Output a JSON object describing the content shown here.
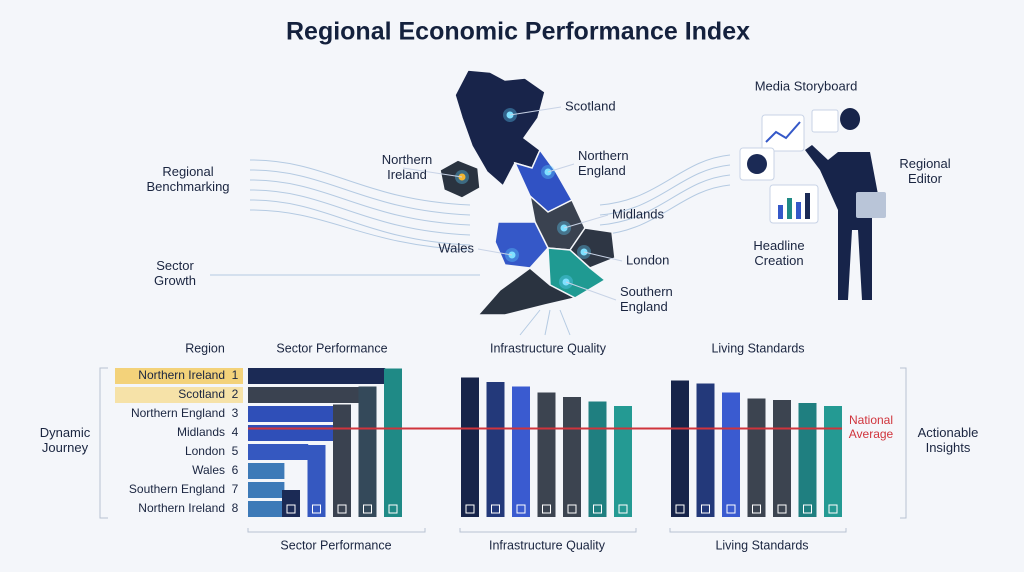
{
  "title": "Regional Economic Performance Index",
  "map": {
    "labels": [
      {
        "lines": [
          "Scotland"
        ]
      },
      {
        "lines": [
          "Northern",
          "Ireland"
        ]
      },
      {
        "lines": [
          "Northern",
          "England"
        ]
      },
      {
        "lines": [
          "Midlands"
        ]
      },
      {
        "lines": [
          "Wales"
        ]
      },
      {
        "lines": [
          "London"
        ]
      },
      {
        "lines": [
          "Southern",
          "England"
        ]
      }
    ]
  },
  "side_labels": [
    {
      "lines": [
        "Regional",
        "Benchmarking"
      ]
    },
    {
      "lines": [
        "Sector",
        "Growth"
      ]
    },
    {
      "lines": [
        "Dynamic",
        "Journey"
      ]
    },
    {
      "lines": [
        "Actionable",
        "Insights"
      ]
    }
  ],
  "media": {
    "title": "Media Storyboard",
    "labels": [
      {
        "lines": [
          "Regional",
          "Editor"
        ]
      },
      {
        "lines": [
          "Headline",
          "Creation"
        ]
      }
    ]
  },
  "ranking": {
    "header": "Region",
    "rows": [
      {
        "name": "Northern Ireland",
        "rank": 1
      },
      {
        "name": "Scotland",
        "rank": 2
      },
      {
        "name": "Northern England",
        "rank": 3
      },
      {
        "name": "Midlands",
        "rank": 4
      },
      {
        "name": "London",
        "rank": 5
      },
      {
        "name": "Wales",
        "rank": 6
      },
      {
        "name": "Southern England",
        "rank": 7
      },
      {
        "name": "Northern Ireland",
        "rank": 8
      }
    ]
  },
  "panels": [
    {
      "header": "Sector Performance",
      "footer": "Sector Performance",
      "bars": [
        {
          "value": 98,
          "color": "#1b2a55"
        },
        {
          "value": 79,
          "color": "#3a4250"
        },
        {
          "value": 61,
          "color": "#2f4fb8"
        },
        {
          "value": 61,
          "color": "#2f4fb8"
        },
        {
          "value": 43,
          "color": "#3558c0"
        },
        {
          "value": 26,
          "color": "#3d7ab8"
        },
        {
          "value": 26,
          "color": "#3d7ab8"
        },
        {
          "value": 26,
          "color": "#3d7ab8"
        }
      ],
      "columns": [
        {
          "value": 18,
          "color": "#1b2a55"
        },
        {
          "value": 48,
          "color": "#3558c0"
        },
        {
          "value": 75,
          "color": "#3a4250"
        },
        {
          "value": 87,
          "color": "#34495a"
        },
        {
          "value": 99,
          "color": "#1f8a86"
        }
      ]
    },
    {
      "header": "Infrastructure Quality",
      "footer": "Infrastructure Quality",
      "columns": [
        {
          "value": 93,
          "color": "#17244a"
        },
        {
          "value": 90,
          "color": "#23397a"
        },
        {
          "value": 87,
          "color": "#3a5bd0"
        },
        {
          "value": 83,
          "color": "#3c4450"
        },
        {
          "value": 80,
          "color": "#3c4450"
        },
        {
          "value": 77,
          "color": "#1f7f80"
        },
        {
          "value": 74,
          "color": "#249a93"
        }
      ]
    },
    {
      "header": "Living Standards",
      "footer": "Living Standards",
      "columns": [
        {
          "value": 91,
          "color": "#17244a"
        },
        {
          "value": 89,
          "color": "#23397a"
        },
        {
          "value": 83,
          "color": "#3a5bd0"
        },
        {
          "value": 79,
          "color": "#3c4450"
        },
        {
          "value": 78,
          "color": "#3c4450"
        },
        {
          "value": 76,
          "color": "#1f7f80"
        },
        {
          "value": 74,
          "color": "#249a93"
        }
      ]
    }
  ],
  "national_average": {
    "lines": [
      "National",
      "Average"
    ],
    "value": 59
  }
}
